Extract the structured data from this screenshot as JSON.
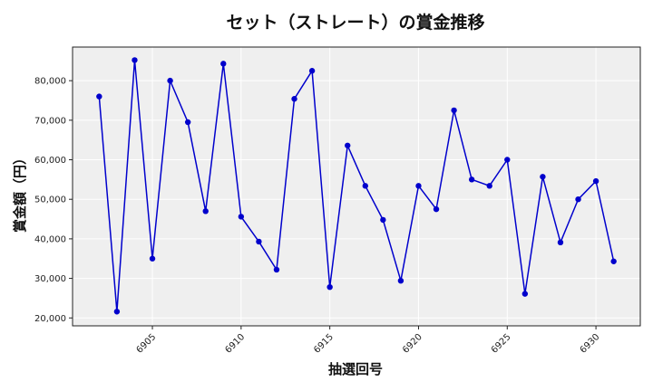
{
  "chart_data": {
    "type": "line",
    "title": "セット（ストレート）の賞金推移",
    "xlabel": "抽選回号",
    "ylabel": "賞金額（円）",
    "x": [
      6902,
      6903,
      6904,
      6905,
      6906,
      6907,
      6908,
      6909,
      6910,
      6911,
      6912,
      6913,
      6914,
      6915,
      6916,
      6917,
      6918,
      6919,
      6920,
      6921,
      6922,
      6923,
      6924,
      6925,
      6926,
      6927,
      6928,
      6929,
      6930,
      6931
    ],
    "series": [
      {
        "values": [
          76000,
          21600,
          85200,
          35000,
          80000,
          69500,
          47000,
          84300,
          45600,
          39300,
          32200,
          75400,
          82500,
          27800,
          63600,
          53400,
          44800,
          29400,
          53400,
          47500,
          72500,
          55000,
          53400,
          60000,
          26100,
          55700,
          39100,
          50000,
          54600,
          34300
        ],
        "color": "#0000cc"
      }
    ],
    "xticks": [
      6905,
      6910,
      6915,
      6920,
      6925,
      6930
    ],
    "yticks": [
      20000,
      30000,
      40000,
      50000,
      60000,
      70000,
      80000
    ],
    "ytick_labels": [
      "20,000",
      "30,000",
      "40,000",
      "50,000",
      "60,000",
      "70,000",
      "80,000"
    ],
    "xlim": [
      6900.5,
      6932.5
    ],
    "ylim": [
      18000,
      88500
    ],
    "grid": true,
    "plot_background": "#efefef",
    "grid_color": "#ffffff"
  }
}
